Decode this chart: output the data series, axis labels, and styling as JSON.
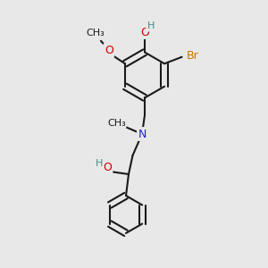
{
  "bg_color": "#e8e8e8",
  "bond_color": "#1a1a1a",
  "bond_width": 1.5,
  "atom_colors": {
    "O": "#cc0000",
    "N": "#2222cc",
    "Br": "#cc7700",
    "C": "#1a1a1a",
    "H": "#4a8a8a"
  },
  "font_size": 9
}
